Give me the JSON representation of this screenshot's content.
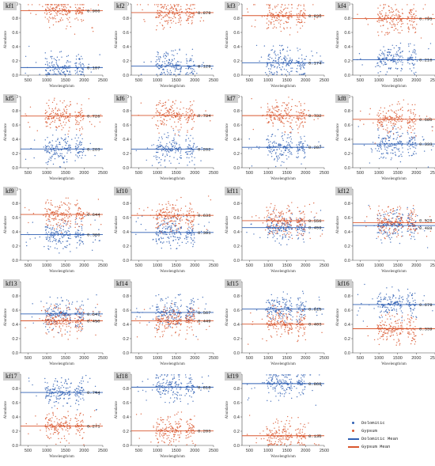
{
  "chart_data": {
    "type": "scatter",
    "layout_description": "19 small-multiple scatter panels in a 4-column grid; each shows per-band abundance points for two classes with horizontal mean lines annotated with the mean value.",
    "xlabel": "Wavelength/nm",
    "ylabel": "Abundance",
    "xlim": [
      300,
      2500
    ],
    "ylim": [
      0,
      1.0
    ],
    "xticks": [
      500,
      1000,
      1500,
      2000,
      2500
    ],
    "yticks": [
      0.0,
      0.2,
      0.4,
      0.6,
      0.8,
      1.0
    ],
    "grid": false,
    "legend_position": "bottom-right",
    "legend": [
      {
        "label": "Dolomitic",
        "kind": "points",
        "color": "#2f5fb3"
      },
      {
        "label": "Gypsum",
        "kind": "points",
        "color": "#d9572f"
      },
      {
        "label": "Dolomitic Mean",
        "kind": "line",
        "color": "#2f5fb3"
      },
      {
        "label": "Gypsum Mean",
        "kind": "line",
        "color": "#d9572f"
      }
    ],
    "panels": [
      {
        "title": "kf1",
        "gypsum_mean": 0.906,
        "dolomitic_mean": 0.107,
        "gypsum_label": "0.906",
        "dolomitic_label": "0.107"
      },
      {
        "title": "kf2",
        "gypsum_mean": 0.879,
        "dolomitic_mean": 0.129,
        "gypsum_label": "0.879",
        "dolomitic_label": "0.129"
      },
      {
        "title": "kf3",
        "gypsum_mean": 0.836,
        "dolomitic_mean": 0.174,
        "gypsum_label": "0.836",
        "dolomitic_label": "0.174"
      },
      {
        "title": "kf4",
        "gypsum_mean": 0.795,
        "dolomitic_mean": 0.216,
        "gypsum_label": "0.795",
        "dolomitic_label": "0.216"
      },
      {
        "title": "kf5",
        "gypsum_mean": 0.726,
        "dolomitic_mean": 0.263,
        "gypsum_label": "0.726",
        "dolomitic_label": "0.263"
      },
      {
        "title": "kf6",
        "gypsum_mean": 0.734,
        "dolomitic_mean": 0.262,
        "gypsum_label": "0.734",
        "dolomitic_label": "0.262"
      },
      {
        "title": "kf7",
        "gypsum_mean": 0.732,
        "dolomitic_mean": 0.287,
        "gypsum_label": "0.732",
        "dolomitic_label": "0.287"
      },
      {
        "title": "kf8",
        "gypsum_mean": 0.68,
        "dolomitic_mean": 0.333,
        "gypsum_label": "0.680",
        "dolomitic_label": "0.333"
      },
      {
        "title": "kf9",
        "gypsum_mean": 0.644,
        "dolomitic_mean": 0.36,
        "gypsum_label": "0.644",
        "dolomitic_label": "0.360"
      },
      {
        "title": "kf10",
        "gypsum_mean": 0.631,
        "dolomitic_mean": 0.391,
        "gypsum_label": "0.631",
        "dolomitic_label": "0.391"
      },
      {
        "title": "kf11",
        "gypsum_mean": 0.556,
        "dolomitic_mean": 0.459,
        "gypsum_label": "0.556",
        "dolomitic_label": "0.459"
      },
      {
        "title": "kf12",
        "gypsum_mean": 0.528,
        "dolomitic_mean": 0.488,
        "gypsum_label": "0.528",
        "dolomitic_label": "0.488"
      },
      {
        "title": "kf13",
        "gypsum_mean": 0.45,
        "dolomitic_mean": 0.547,
        "gypsum_label": "0.450",
        "dolomitic_label": "0.547"
      },
      {
        "title": "kf14",
        "gypsum_mean": 0.449,
        "dolomitic_mean": 0.567,
        "gypsum_label": "0.449",
        "dolomitic_label": "0.567"
      },
      {
        "title": "kf15",
        "gypsum_mean": 0.403,
        "dolomitic_mean": 0.615,
        "gypsum_label": "0.403",
        "dolomitic_label": "0.615"
      },
      {
        "title": "kf16",
        "gypsum_mean": 0.339,
        "dolomitic_mean": 0.679,
        "gypsum_label": "0.339",
        "dolomitic_label": "0.679"
      },
      {
        "title": "kf17",
        "gypsum_mean": 0.271,
        "dolomitic_mean": 0.744,
        "gypsum_label": "0.271",
        "dolomitic_label": "0.744"
      },
      {
        "title": "kf18",
        "gypsum_mean": 0.203,
        "dolomitic_mean": 0.818,
        "gypsum_label": "0.203",
        "dolomitic_label": "0.818"
      },
      {
        "title": "kf19",
        "gypsum_mean": 0.136,
        "dolomitic_mean": 0.868,
        "gypsum_label": "0.136",
        "dolomitic_label": "0.868"
      }
    ]
  },
  "legend": {
    "dolomitic": "Dolomitic",
    "gypsum": "Gypsum",
    "dolomitic_mean": "Dolomitic Mean",
    "gypsum_mean": "Gypsum Mean"
  }
}
